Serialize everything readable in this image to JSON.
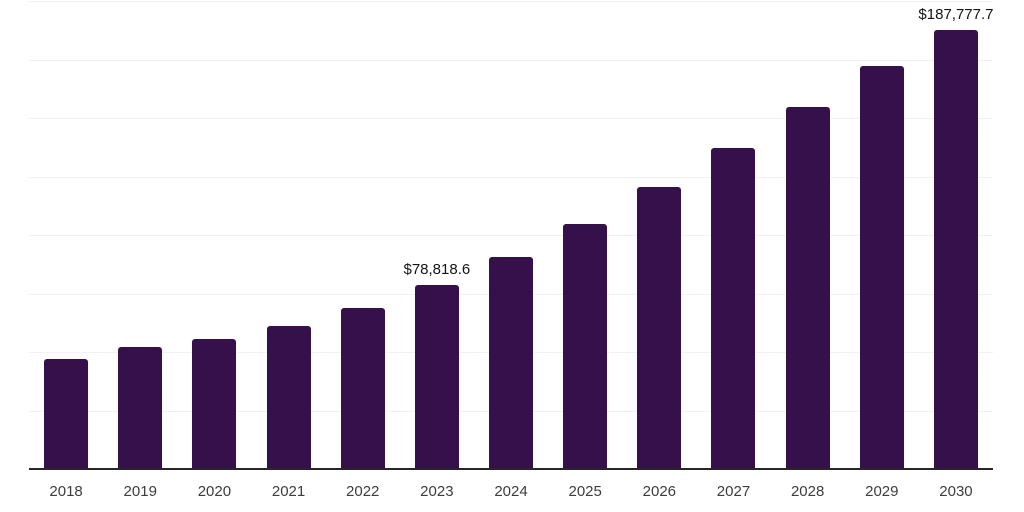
{
  "chart_data": {
    "type": "bar",
    "title": "",
    "xlabel": "",
    "ylabel": "",
    "categories": [
      "2018",
      "2019",
      "2020",
      "2021",
      "2022",
      "2023",
      "2024",
      "2025",
      "2026",
      "2027",
      "2028",
      "2029",
      "2030"
    ],
    "values": [
      47200,
      52100,
      55400,
      61300,
      68800,
      78818.6,
      90400,
      104700,
      120700,
      137200,
      154500,
      172200,
      187777.7
    ],
    "data_labels": {
      "2023": "$78,818.6",
      "2030": "$187,777.7"
    },
    "ylim": [
      0,
      200000
    ],
    "gridline_interval": 25000,
    "grid": true,
    "legend": "none",
    "colors": {
      "bar_fill": "#35104B",
      "axis_line": "#262626",
      "gridline": "#f1f1f1",
      "x_label_text": "#3d3d3d",
      "data_label_text": "#141414",
      "background": "#ffffff"
    }
  }
}
